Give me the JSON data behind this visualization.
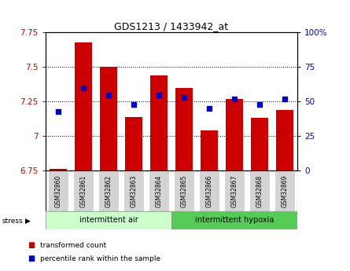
{
  "title": "GDS1213 / 1433942_at",
  "samples": [
    "GSM32860",
    "GSM32861",
    "GSM32862",
    "GSM32863",
    "GSM32864",
    "GSM32865",
    "GSM32866",
    "GSM32867",
    "GSM32868",
    "GSM32869"
  ],
  "bar_tops": [
    6.765,
    7.68,
    7.5,
    7.14,
    7.44,
    7.35,
    7.04,
    7.27,
    7.13,
    7.19
  ],
  "bar_bottom": 6.75,
  "bar_color": "#cc0000",
  "dot_values_left": [
    7.18,
    7.35,
    7.3,
    7.23,
    7.3,
    7.28,
    7.2,
    7.27,
    7.23,
    7.27
  ],
  "dot_color": "#0000cc",
  "ylim_left": [
    6.75,
    7.75
  ],
  "ylim_right": [
    0,
    100
  ],
  "yticks_left": [
    6.75,
    7.0,
    7.25,
    7.5,
    7.75
  ],
  "ytick_labels_left": [
    "6.75",
    "7",
    "7.25",
    "7.5",
    "7.75"
  ],
  "yticks_right": [
    0,
    25,
    50,
    75,
    100
  ],
  "ytick_labels_right": [
    "0",
    "25",
    "50",
    "75",
    "100%"
  ],
  "group1_label": "intermittent air",
  "group2_label": "intermittent hypoxia",
  "group1_indices": [
    0,
    1,
    2,
    3,
    4
  ],
  "group2_indices": [
    5,
    6,
    7,
    8,
    9
  ],
  "stress_label": "stress",
  "legend_bar_label": "transformed count",
  "legend_dot_label": "percentile rank within the sample",
  "group1_color": "#ccffcc",
  "group2_color": "#55cc55",
  "sample_bg_color": "#d4d4d4",
  "axis_bg_color": "#ffffff",
  "left_color": "#cc0000",
  "right_color": "#0000cc"
}
